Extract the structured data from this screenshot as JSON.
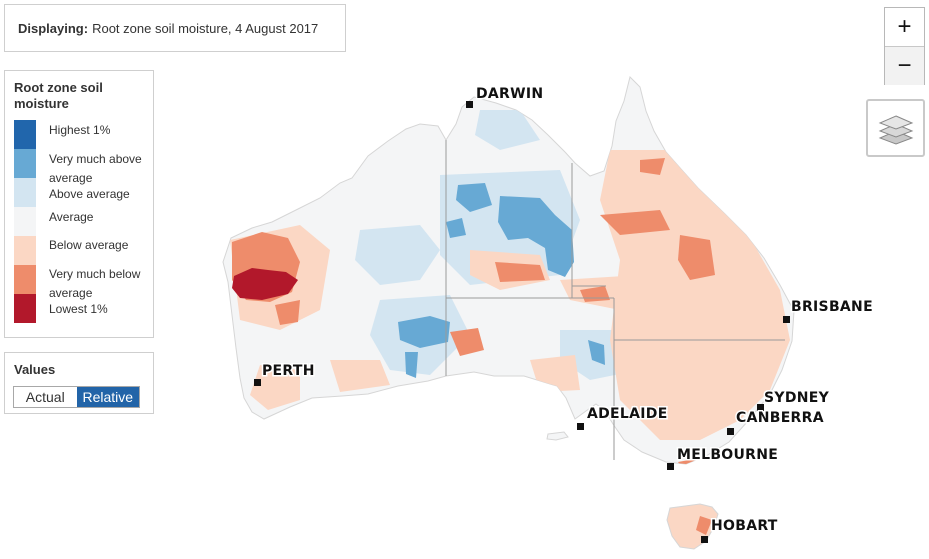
{
  "header": {
    "displaying_label": "Displaying:",
    "displaying_value": "Root zone soil moisture, 4 August 2017"
  },
  "legend": {
    "title": "Root zone soil moisture",
    "items": [
      {
        "label": "Highest 1%",
        "color": "#2166ac"
      },
      {
        "label": "Very much above average",
        "color": "#67a9d4"
      },
      {
        "label": "Above average",
        "color": "#d3e5f1"
      },
      {
        "label": "Average",
        "color": "#f4f5f6"
      },
      {
        "label": "Below average",
        "color": "#fbd7c4"
      },
      {
        "label": "Very much below average",
        "color": "#ee8c6b"
      },
      {
        "label": "Lowest 1%",
        "color": "#b2182b"
      }
    ]
  },
  "values": {
    "title": "Values",
    "options": [
      "Actual",
      "Relative"
    ],
    "selected": "Relative"
  },
  "map_controls": {
    "zoom_in": "+",
    "zoom_out": "−",
    "layers_icon": "layers-icon"
  },
  "cities": {
    "darwin": "DARWIN",
    "brisbane": "BRISBANE",
    "perth": "PERTH",
    "sydney": "SYDNEY",
    "adelaide": "ADELAIDE",
    "canberra": "CANBERRA",
    "melbourne": "MELBOURNE",
    "hobart": "HOBART"
  }
}
